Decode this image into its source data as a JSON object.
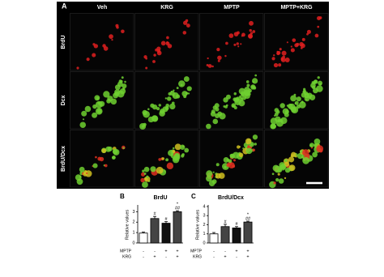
{
  "panel_a": {
    "label": "A",
    "columns": [
      "Veh",
      "KRG",
      "MPTP",
      "MPTP+KRG"
    ],
    "rows": [
      "BrdU",
      "Dcx",
      "BrdU/Dcx"
    ]
  },
  "chart_data": [
    {
      "type": "bar",
      "label": "B",
      "title": "BrdU",
      "y_label": "Relative values",
      "values": [
        0.95,
        2.35,
        1.9,
        3.0
      ],
      "errors": [
        0.1,
        0.2,
        0.15,
        0.1
      ],
      "colors": [
        "#ffffff",
        "#444444",
        "#111111",
        "#444444"
      ],
      "annotations": [
        [],
        [
          "#"
        ],
        [
          "#"
        ],
        [
          "*",
          "##"
        ]
      ],
      "conditions": [
        {
          "name": "MPTP",
          "values": [
            "-",
            "-",
            "+",
            "+"
          ]
        },
        {
          "name": "KRG",
          "values": [
            "-",
            "+",
            "-",
            "+"
          ]
        }
      ],
      "ylim": [
        0,
        3.5
      ],
      "yticks": [
        0,
        1,
        2,
        3
      ]
    },
    {
      "type": "bar",
      "label": "C",
      "title": "BrdU/Dcx",
      "y_label": "Relative values",
      "values": [
        1.0,
        1.8,
        1.65,
        2.3
      ],
      "errors": [
        0.15,
        0.25,
        0.15,
        0.1
      ],
      "colors": [
        "#ffffff",
        "#444444",
        "#111111",
        "#444444"
      ],
      "annotations": [
        [],
        [
          "#"
        ],
        [
          "#"
        ],
        [
          "*",
          "##"
        ]
      ],
      "conditions": [
        {
          "name": "MPTP",
          "values": [
            "-",
            "-",
            "+",
            "+"
          ]
        },
        {
          "name": "KRG",
          "values": [
            "-",
            "+",
            "-",
            "+"
          ]
        }
      ],
      "ylim": [
        0,
        4
      ],
      "yticks": [
        0,
        1,
        2,
        3,
        4
      ]
    }
  ]
}
